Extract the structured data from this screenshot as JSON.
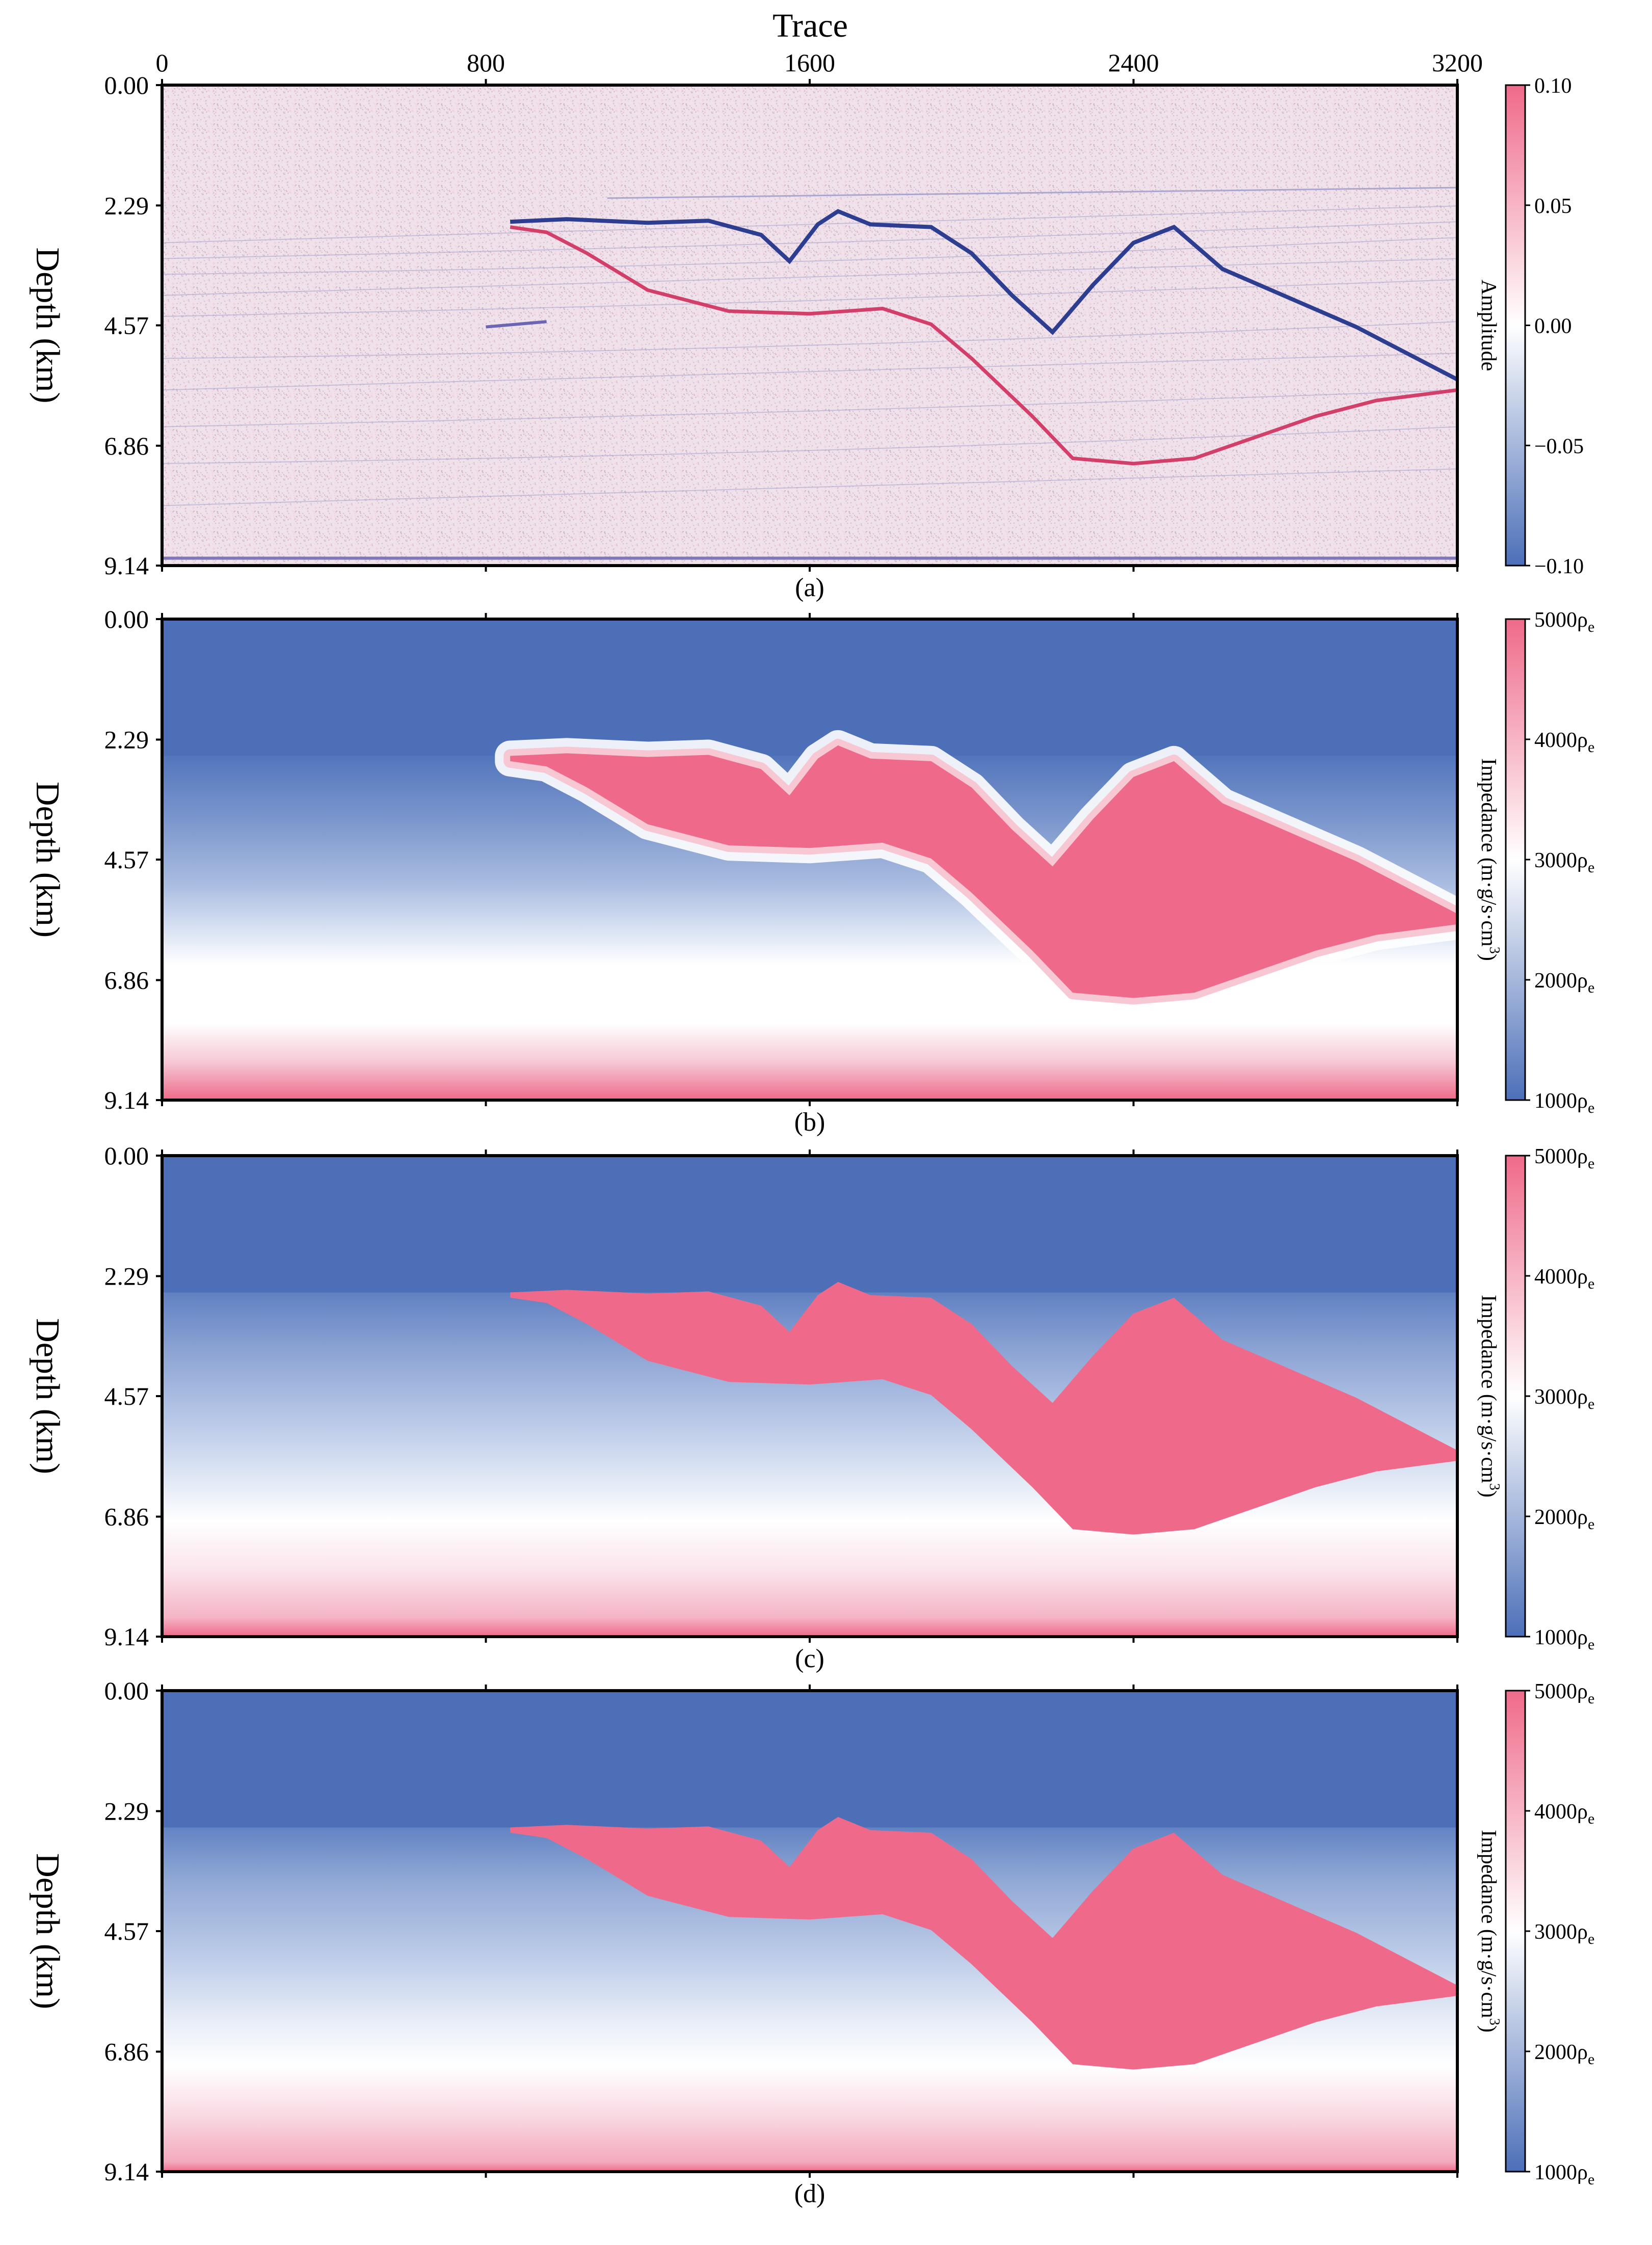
{
  "colors": {
    "blue": "#4c6fb8",
    "pink": "#ef6a8a",
    "seismic_bg": "#efe2ea",
    "frame": "#000000"
  },
  "chart_data": {
    "type": "heatmap",
    "x_axis": {
      "title": "Trace",
      "range": [
        0,
        3200
      ],
      "ticks": [
        0,
        800,
        1600,
        2400,
        3200
      ],
      "tick_labels": [
        "0",
        "800",
        "1600",
        "2400",
        "3200"
      ]
    },
    "y_axis": {
      "title": "Depth (km)",
      "range": [
        0,
        9.14
      ],
      "ticks": [
        0,
        2.29,
        4.57,
        6.86,
        9.14
      ],
      "tick_labels": [
        "0.00",
        "2.29",
        "4.57",
        "6.86",
        "9.14"
      ]
    },
    "salt_top": [
      [
        860,
        2.6
      ],
      [
        1000,
        2.55
      ],
      [
        1200,
        2.62
      ],
      [
        1350,
        2.58
      ],
      [
        1480,
        2.85
      ],
      [
        1550,
        3.35
      ],
      [
        1620,
        2.65
      ],
      [
        1670,
        2.4
      ],
      [
        1750,
        2.65
      ],
      [
        1900,
        2.7
      ],
      [
        2000,
        3.2
      ],
      [
        2100,
        4.0
      ],
      [
        2200,
        4.7
      ],
      [
        2300,
        3.8
      ],
      [
        2400,
        3.0
      ],
      [
        2500,
        2.7
      ],
      [
        2620,
        3.5
      ],
      [
        2800,
        4.1
      ],
      [
        2950,
        4.6
      ],
      [
        3100,
        5.2
      ],
      [
        3200,
        5.6
      ]
    ],
    "salt_base": [
      [
        860,
        2.7
      ],
      [
        950,
        2.8
      ],
      [
        1050,
        3.2
      ],
      [
        1200,
        3.9
      ],
      [
        1400,
        4.3
      ],
      [
        1600,
        4.35
      ],
      [
        1780,
        4.25
      ],
      [
        1900,
        4.55
      ],
      [
        2000,
        5.2
      ],
      [
        2150,
        6.3
      ],
      [
        2250,
        7.1
      ],
      [
        2400,
        7.2
      ],
      [
        2550,
        7.1
      ],
      [
        2700,
        6.7
      ],
      [
        2850,
        6.3
      ],
      [
        3000,
        6.0
      ],
      [
        3200,
        5.8
      ]
    ],
    "panels": [
      {
        "label": "(a)",
        "kind": "seismic",
        "colorbar": {
          "title": "Amplitude",
          "range": [
            -0.1,
            0.1
          ],
          "tick_labels": [
            "0.10",
            "0.05",
            "0.00",
            "−0.05",
            "−0.10"
          ]
        }
      },
      {
        "label": "(b)",
        "kind": "impedance-smoothed",
        "colorbar": {
          "title": "Impedance (m·g/s·cm",
          "title_sup": "3",
          "title_end": ")",
          "range": [
            1000,
            5000
          ],
          "tick_labels": [
            "5000ρ",
            "4000ρ",
            "3000ρ",
            "2000ρ",
            "1000ρ"
          ],
          "tick_sub": "e"
        }
      },
      {
        "label": "(c)",
        "kind": "impedance-inverted",
        "colorbar": {
          "title": "Impedance (m·g/s·cm",
          "title_sup": "3",
          "title_end": ")",
          "range": [
            1000,
            5000
          ],
          "tick_labels": [
            "5000ρ",
            "4000ρ",
            "3000ρ",
            "2000ρ",
            "1000ρ"
          ],
          "tick_sub": "e"
        }
      },
      {
        "label": "(d)",
        "kind": "impedance-true",
        "colorbar": {
          "title": "Impedance (m·g/s·cm",
          "title_sup": "3",
          "title_end": ")",
          "range": [
            1000,
            5000
          ],
          "tick_labels": [
            "5000ρ",
            "4000ρ",
            "3000ρ",
            "2000ρ",
            "1000ρ"
          ],
          "tick_sub": "e"
        }
      }
    ]
  }
}
